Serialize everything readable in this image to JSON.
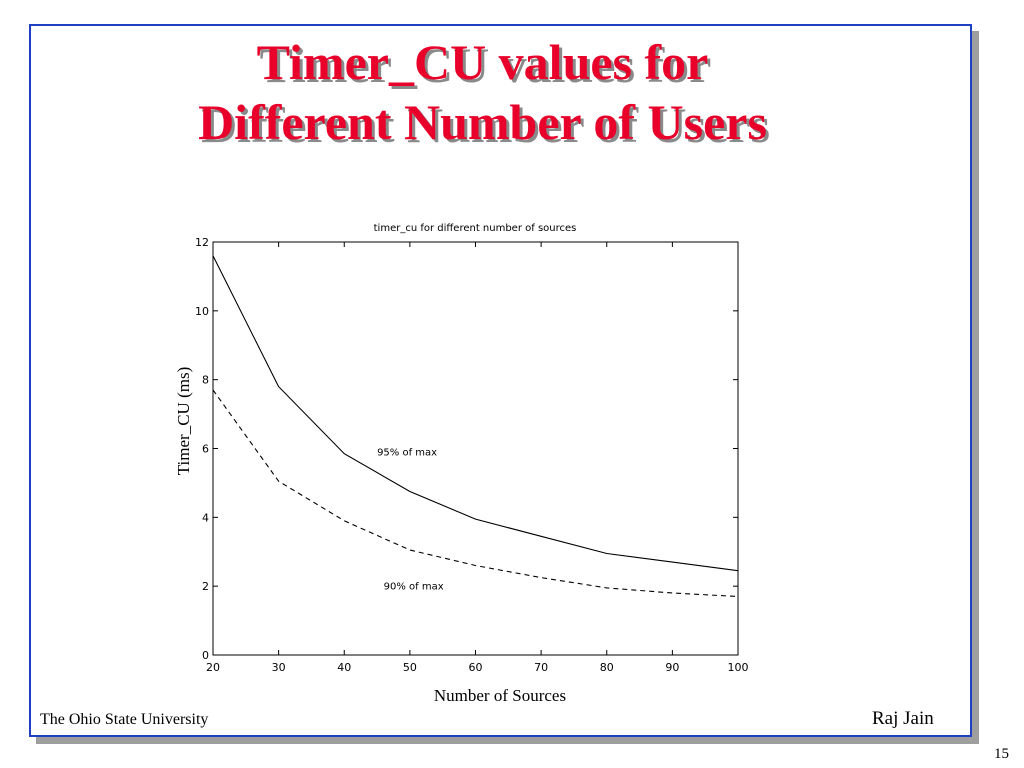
{
  "slide": {
    "title_line1": "Timer_CU values for",
    "title_line2": "Different Number of Users",
    "footer_left": "The Ohio State University",
    "footer_right": "Raj Jain",
    "page_number": "15",
    "title_color": "#e8002a",
    "frame_color": "#1f3fc4"
  },
  "chart_data": {
    "type": "line",
    "title": "timer_cu for different number of sources",
    "xlabel": "Number of Sources",
    "ylabel": "Timer_CU (ms)",
    "xlim": [
      20,
      100
    ],
    "ylim": [
      0,
      12
    ],
    "xticks": [
      20,
      30,
      40,
      50,
      60,
      70,
      80,
      90,
      100
    ],
    "yticks": [
      0,
      2,
      4,
      6,
      8,
      10,
      12
    ],
    "grid": false,
    "legend": "none",
    "series": [
      {
        "name": "95% of max",
        "style": "solid",
        "x": [
          20,
          30,
          40,
          50,
          60,
          70,
          80,
          90,
          100
        ],
        "y": [
          11.6,
          7.8,
          5.85,
          4.75,
          3.95,
          3.45,
          2.95,
          2.7,
          2.45
        ]
      },
      {
        "name": "90% of max",
        "style": "dashed",
        "x": [
          20,
          30,
          40,
          50,
          60,
          70,
          80,
          90,
          100
        ],
        "y": [
          7.7,
          5.05,
          3.9,
          3.05,
          2.6,
          2.25,
          1.95,
          1.8,
          1.7
        ]
      }
    ],
    "annotations": [
      {
        "text": "95% of max",
        "x": 45,
        "y": 5.8
      },
      {
        "text": "90% of max",
        "x": 46,
        "y": 1.9
      }
    ]
  }
}
